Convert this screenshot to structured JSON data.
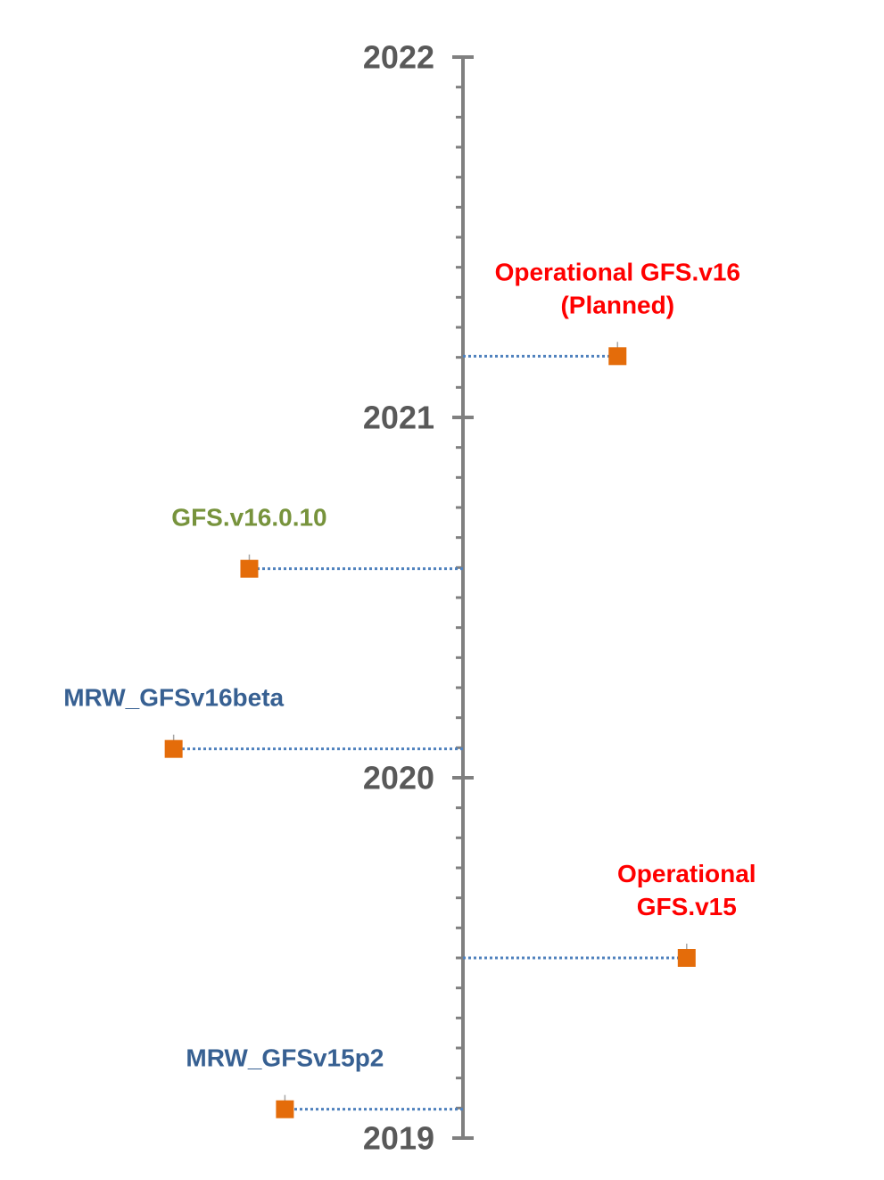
{
  "chart_data": {
    "type": "timeline",
    "title": "",
    "axis": {
      "orientation": "vertical",
      "range": [
        2019,
        2022
      ],
      "tick_labels": [
        "2019",
        "2020",
        "2021",
        "2022"
      ],
      "minor_ticks_per_year": 12,
      "color": "#808080"
    },
    "marker_color": "#E46C0A",
    "connector_color": "#4F81BD",
    "events": [
      {
        "date": 2019.08,
        "side": "left",
        "offset": 0.4,
        "label": [
          "MRW_GFSv15p2"
        ],
        "label_color": "#376092"
      },
      {
        "date": 2019.5,
        "side": "right",
        "offset": 0.55,
        "label": [
          "Operational",
          "GFS.v15"
        ],
        "label_color": "#FF0000"
      },
      {
        "date": 2020.08,
        "side": "left",
        "offset": 0.65,
        "label": [
          "MRW_GFSv16beta"
        ],
        "label_color": "#376092"
      },
      {
        "date": 2020.58,
        "side": "left",
        "offset": 0.48,
        "label": [
          "GFS.v16.0.10"
        ],
        "label_color": "#77933C"
      },
      {
        "date": 2021.17,
        "side": "right",
        "offset": 0.38,
        "label": [
          "Operational GFS.v16",
          "(Planned)"
        ],
        "label_color": "#FF0000"
      }
    ]
  }
}
